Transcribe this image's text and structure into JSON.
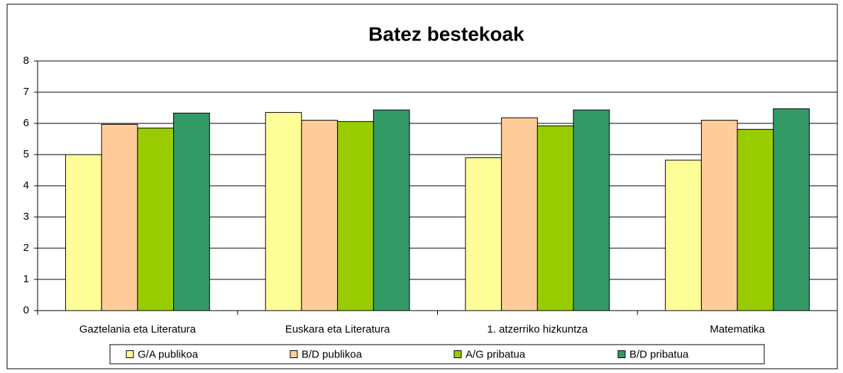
{
  "chart_data": {
    "type": "bar",
    "title": "Batez bestekoak",
    "categories": [
      "Gaztelania eta Literatura",
      "Euskara eta Literatura",
      "1. atzerriko hizkuntza",
      "Matematika"
    ],
    "series": [
      {
        "name": "G/A publikoa",
        "color": "#ffff99",
        "values": [
          5.0,
          6.35,
          4.9,
          4.82
        ]
      },
      {
        "name": "B/D publikoa",
        "color": "#ffcc99",
        "values": [
          5.97,
          6.1,
          6.18,
          6.1
        ]
      },
      {
        "name": "A/G pribatua",
        "color": "#99cc00",
        "values": [
          5.85,
          6.06,
          5.92,
          5.81
        ]
      },
      {
        "name": "B/D pribatua",
        "color": "#339966",
        "values": [
          6.33,
          6.43,
          6.43,
          6.47
        ]
      }
    ],
    "ylim": [
      0,
      8
    ],
    "yticks": [
      0,
      1,
      2,
      3,
      4,
      5,
      6,
      7,
      8
    ],
    "grid": true,
    "legend": "bottom"
  }
}
